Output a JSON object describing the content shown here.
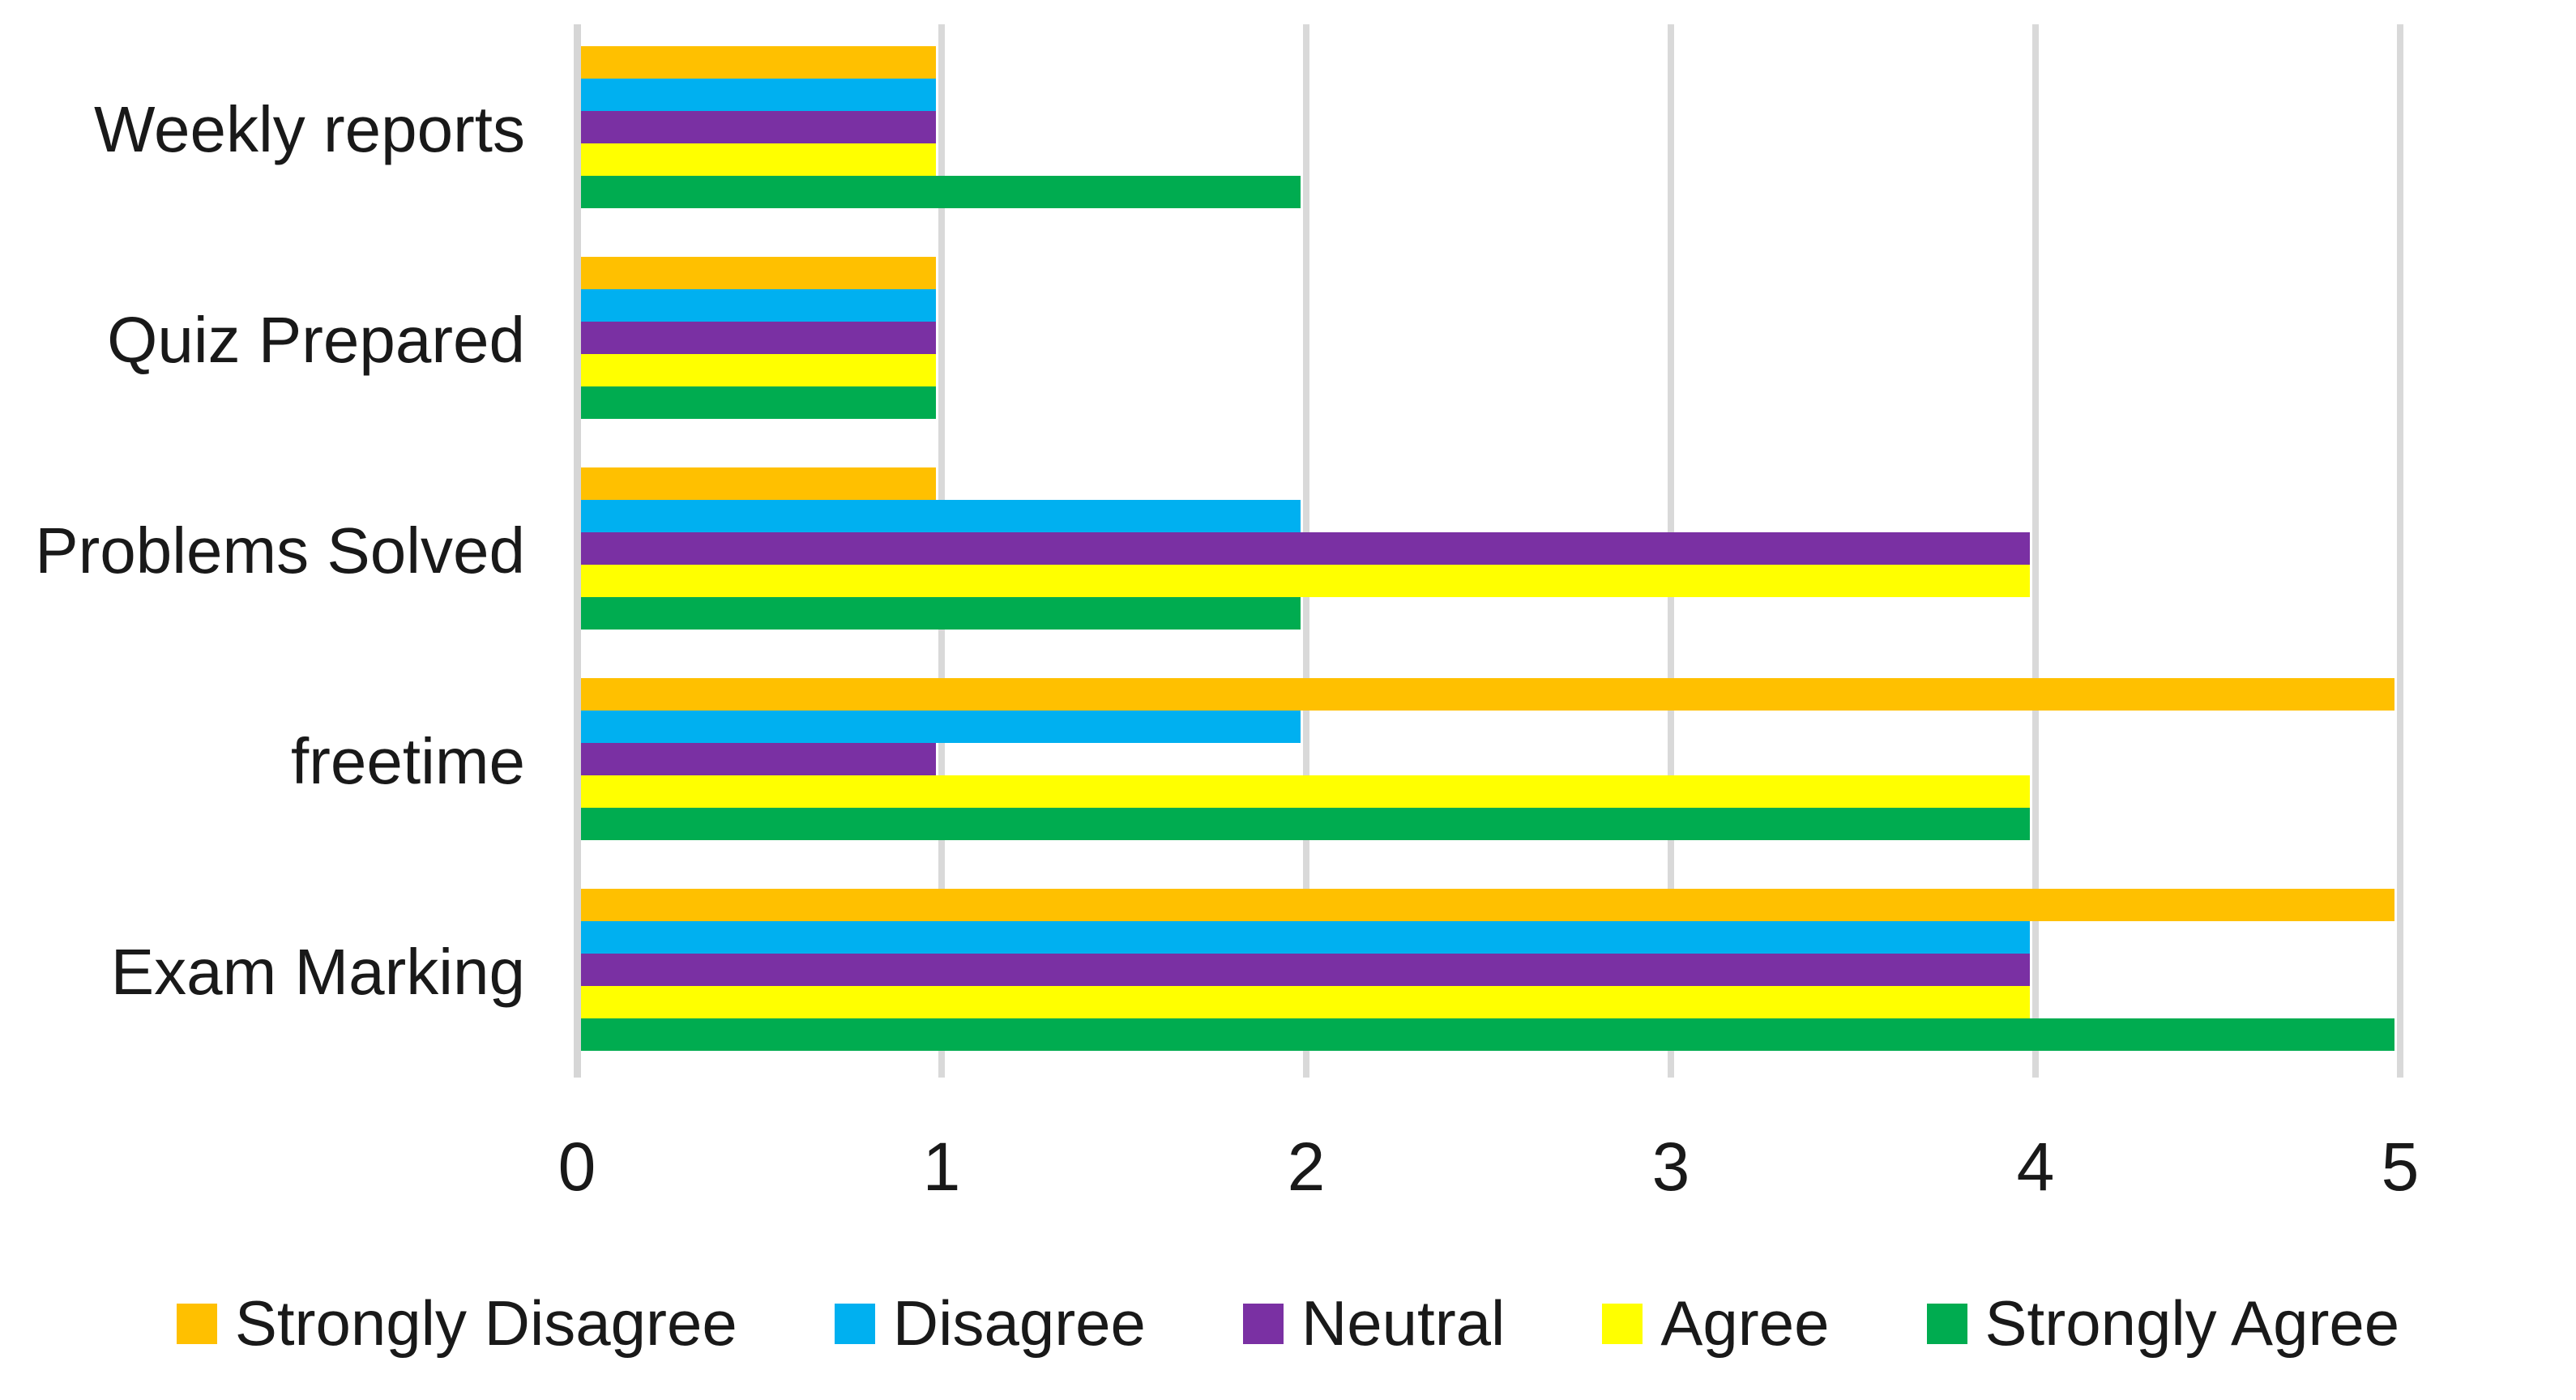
{
  "chart_data": {
    "type": "bar",
    "orientation": "horizontal",
    "title": "",
    "xlabel": "",
    "ylabel": "",
    "categories": [
      "Weekly reports",
      "Quiz Prepared",
      "Problems Solved",
      "freetime",
      "Exam Marking"
    ],
    "series": [
      {
        "name": "Strongly Disagree",
        "color": "#FFC000",
        "values": [
          1,
          1,
          1,
          5,
          5
        ]
      },
      {
        "name": "Disagree",
        "color": "#00B0F0",
        "values": [
          1,
          1,
          2,
          2,
          4
        ]
      },
      {
        "name": "Neutral",
        "color": "#7A30A3",
        "values": [
          1,
          1,
          4,
          1,
          4
        ]
      },
      {
        "name": "Agree",
        "color": "#FFFF00",
        "values": [
          1,
          1,
          4,
          4,
          4
        ]
      },
      {
        "name": "Strongly Agree",
        "color": "#00AC50",
        "values": [
          2,
          1,
          2,
          4,
          5
        ]
      }
    ],
    "xlim": [
      0,
      5
    ],
    "x_ticks": [
      "0",
      "1",
      "2",
      "3",
      "4",
      "5"
    ],
    "grid": true,
    "legend_position": "bottom"
  },
  "palette": {
    "gridline": "#D9D9D9",
    "axis_line": "#D6D6D6",
    "text": "#191919",
    "background": "#FFFFFF"
  }
}
